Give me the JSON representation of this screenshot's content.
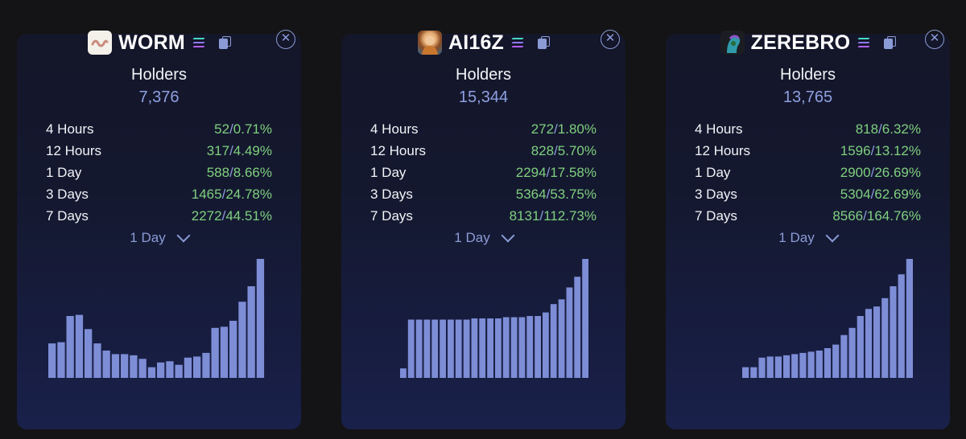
{
  "bar_color": "#7d8dd6",
  "positive_color": "#7fd07f",
  "cards": [
    {
      "name": "WORM",
      "icon": "worm-logo",
      "holders_label": "Holders",
      "holders": "7,376",
      "stats": [
        {
          "label": "4 Hours",
          "count": "52",
          "pct": "0.71%"
        },
        {
          "label": "12 Hours",
          "count": "317",
          "pct": "4.49%"
        },
        {
          "label": "1 Day",
          "count": "588",
          "pct": "8.66%"
        },
        {
          "label": "3 Days",
          "count": "1465",
          "pct": "24.78%"
        },
        {
          "label": "7 Days",
          "count": "2272",
          "pct": "44.51%"
        }
      ],
      "period": "1 Day",
      "chart_data": {
        "type": "bar",
        "values": [
          29,
          30,
          52,
          53,
          41,
          29,
          23,
          20,
          20,
          19,
          16,
          9,
          13,
          14,
          11,
          17,
          18,
          21,
          42,
          43,
          48,
          64,
          77,
          100
        ]
      }
    },
    {
      "name": "AI16Z",
      "icon": "ai16z-avatar",
      "holders_label": "Holders",
      "holders": "15,344",
      "stats": [
        {
          "label": "4 Hours",
          "count": "272",
          "pct": "1.80%"
        },
        {
          "label": "12 Hours",
          "count": "828",
          "pct": "5.70%"
        },
        {
          "label": "1 Day",
          "count": "2294",
          "pct": "17.58%"
        },
        {
          "label": "3 Days",
          "count": "5364",
          "pct": "53.75%"
        },
        {
          "label": "7 Days",
          "count": "8131",
          "pct": "112.73%"
        }
      ],
      "period": "1 Day",
      "chart_data": {
        "type": "bar",
        "values": [
          8,
          49,
          49,
          49,
          49,
          49,
          49,
          49,
          49,
          50,
          50,
          50,
          50,
          51,
          51,
          51,
          52,
          52,
          55,
          62,
          66,
          76,
          85,
          100
        ]
      }
    },
    {
      "name": "ZEREBRO",
      "icon": "zerebro-avatar",
      "holders_label": "Holders",
      "holders": "13,765",
      "stats": [
        {
          "label": "4 Hours",
          "count": "818",
          "pct": "6.32%"
        },
        {
          "label": "12 Hours",
          "count": "1596",
          "pct": "13.12%"
        },
        {
          "label": "1 Day",
          "count": "2900",
          "pct": "26.69%"
        },
        {
          "label": "3 Days",
          "count": "5304",
          "pct": "62.69%"
        },
        {
          "label": "7 Days",
          "count": "8566",
          "pct": "164.76%"
        }
      ],
      "period": "1 Day",
      "chart_data": {
        "type": "bar",
        "values": [
          9,
          9,
          17,
          18,
          18,
          19,
          20,
          21,
          22,
          23,
          25,
          28,
          36,
          42,
          52,
          58,
          60,
          67,
          77,
          87,
          100
        ]
      }
    }
  ]
}
